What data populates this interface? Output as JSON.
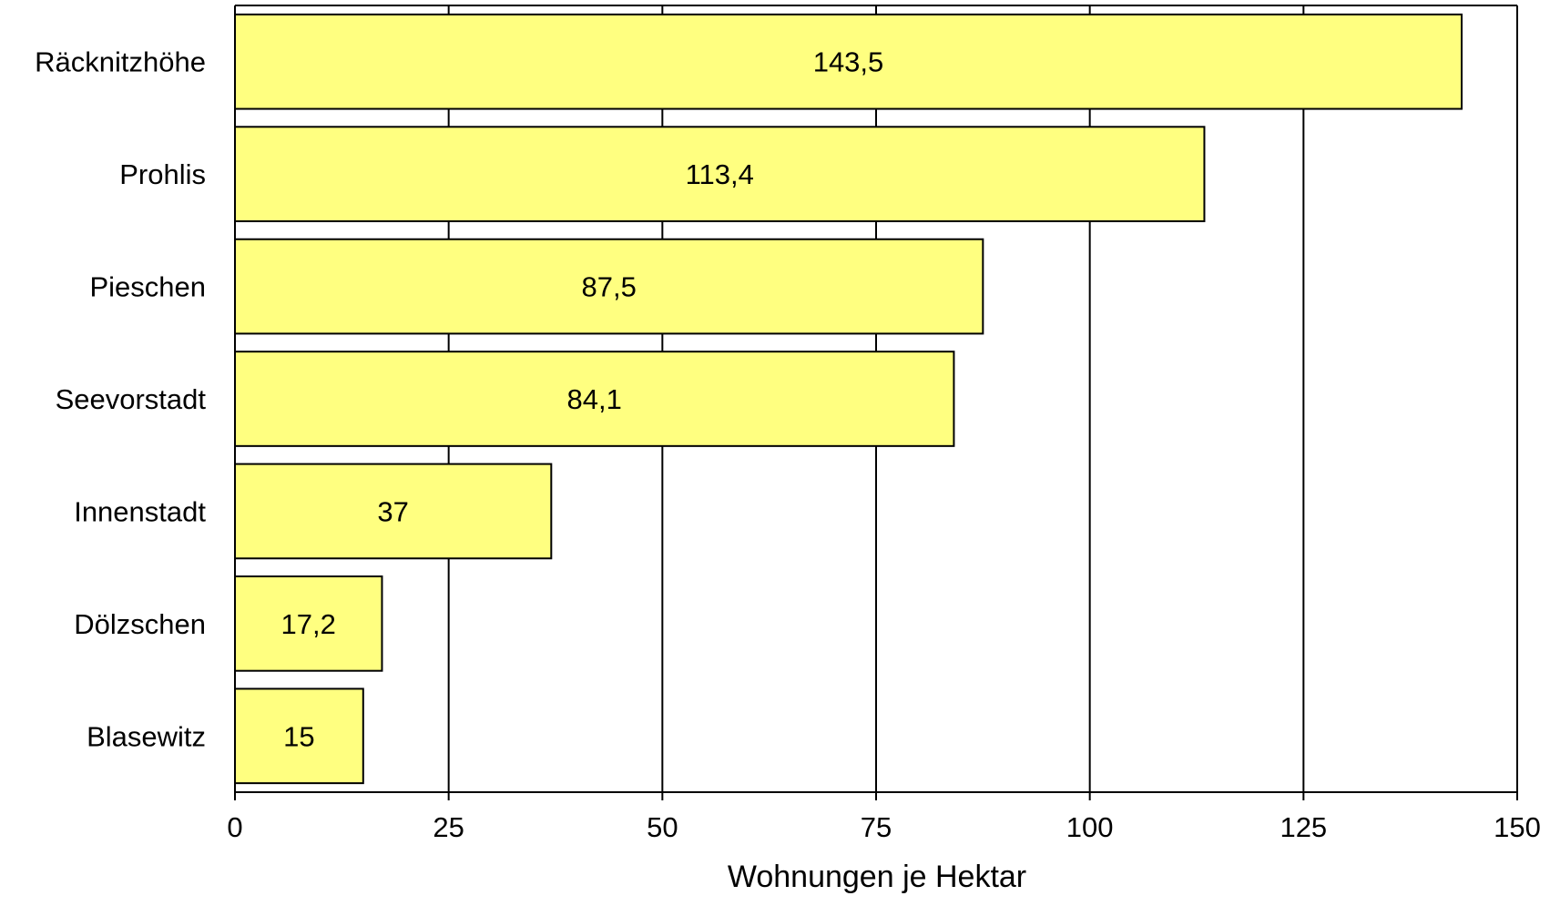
{
  "chart_data": {
    "type": "bar",
    "orientation": "horizontal",
    "title": "",
    "xlabel": "Wohnungen je Hektar",
    "ylabel": "",
    "categories": [
      "Räcknitzhöhe",
      "Prohlis",
      "Pieschen",
      "Seevorstadt",
      "Innenstadt",
      "Dölzschen",
      "Blasewitz"
    ],
    "values": [
      143.5,
      113.4,
      87.5,
      84.1,
      37,
      17.2,
      15
    ],
    "value_labels": [
      "143,5",
      "113,4",
      "87,5",
      "84,1",
      "37",
      "17,2",
      "15"
    ],
    "xlim": [
      0,
      150
    ],
    "x_ticks": [
      0,
      25,
      50,
      75,
      100,
      125,
      150
    ],
    "x_tick_labels": [
      "0",
      "25",
      "50",
      "75",
      "100",
      "125",
      "150"
    ],
    "grid": true,
    "legend": "none",
    "bar_color": "#FFFF80"
  }
}
